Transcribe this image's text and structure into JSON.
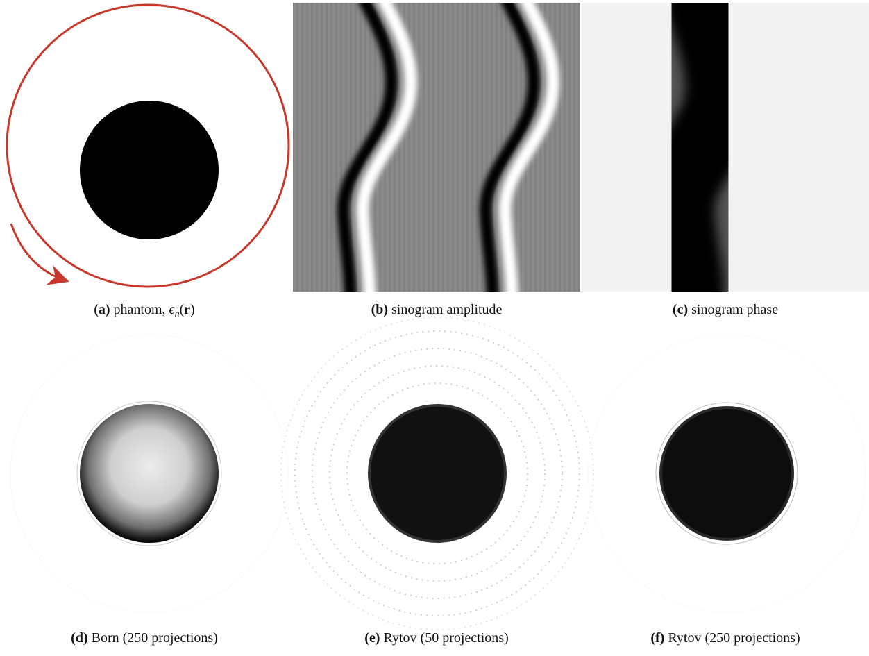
{
  "panels": [
    {
      "label": "(a)",
      "caption": [
        {
          "text": "phantom, ",
          "style": "normal"
        },
        {
          "text": "ϵ",
          "style": "italic"
        },
        {
          "text": "n",
          "style": "sub"
        },
        {
          "text": "(",
          "style": "normal"
        },
        {
          "text": "r",
          "style": "bold"
        },
        {
          "text": ")",
          "style": "normal"
        }
      ]
    },
    {
      "label": "(b)",
      "caption": [
        {
          "text": "sinogram amplitude",
          "style": "normal"
        }
      ]
    },
    {
      "label": "(c)",
      "caption": [
        {
          "text": "sinogram phase",
          "style": "normal"
        }
      ]
    },
    {
      "label": "(d)",
      "caption": [
        {
          "text": "Born (250 projections)",
          "style": "normal"
        }
      ]
    },
    {
      "label": "(e)",
      "caption": [
        {
          "text": "Rytov (50 projections)",
          "style": "normal"
        }
      ]
    },
    {
      "label": "(f)",
      "caption": [
        {
          "text": "Rytov (250 projections)",
          "style": "normal"
        }
      ]
    }
  ]
}
